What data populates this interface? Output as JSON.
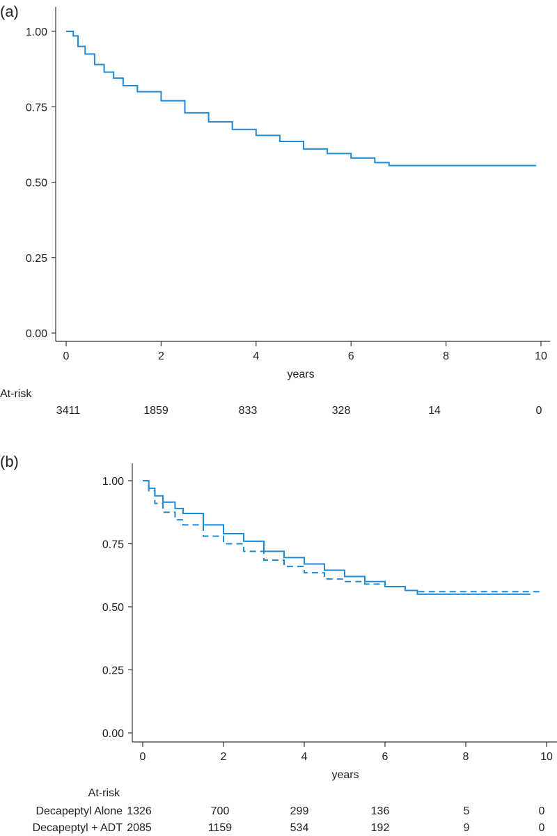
{
  "chart_data": [
    {
      "type": "line",
      "panel_label": "(a)",
      "xlabel": "years",
      "ylabel": "",
      "xlim": [
        0,
        10
      ],
      "ylim": [
        0,
        1
      ],
      "xticks": [
        "0",
        "2",
        "4",
        "6",
        "8",
        "10"
      ],
      "yticks": [
        "0.00",
        "0.25",
        "0.50",
        "0.75",
        "1.00"
      ],
      "color": "#1a8cd8",
      "series": [
        {
          "style": "solid",
          "x": [
            0,
            0.1,
            0.15,
            0.25,
            0.4,
            0.6,
            0.8,
            1.0,
            1.2,
            1.5,
            2.0,
            2.5,
            3.0,
            3.5,
            4.0,
            4.5,
            5.0,
            5.5,
            6.0,
            6.5,
            6.8,
            9.9
          ],
          "y": [
            1.0,
            1.0,
            0.985,
            0.95,
            0.925,
            0.89,
            0.865,
            0.845,
            0.82,
            0.8,
            0.77,
            0.73,
            0.7,
            0.675,
            0.655,
            0.635,
            0.61,
            0.595,
            0.58,
            0.565,
            0.555,
            0.555
          ]
        }
      ],
      "at_risk": {
        "title": "At-risk",
        "rows": [
          {
            "label": "",
            "values": [
              "3411",
              "1859",
              "833",
              "328",
              "14",
              "0"
            ]
          }
        ]
      }
    },
    {
      "type": "line",
      "panel_label": "(b)",
      "xlabel": "years",
      "ylabel": "",
      "xlim": [
        0,
        10
      ],
      "ylim": [
        0,
        1
      ],
      "xticks": [
        "0",
        "2",
        "4",
        "6",
        "8",
        "10"
      ],
      "yticks": [
        "0.00",
        "0.25",
        "0.50",
        "0.75",
        "1.00"
      ],
      "color": "#1a8cd8",
      "series": [
        {
          "style": "solid",
          "x": [
            0,
            0.1,
            0.15,
            0.3,
            0.5,
            0.8,
            1.0,
            1.5,
            2.0,
            2.5,
            3.0,
            3.5,
            4.0,
            4.5,
            5.0,
            5.5,
            6.0,
            6.5,
            6.8,
            9.6
          ],
          "y": [
            1.0,
            1.0,
            0.97,
            0.94,
            0.915,
            0.89,
            0.87,
            0.825,
            0.79,
            0.76,
            0.72,
            0.695,
            0.67,
            0.645,
            0.62,
            0.6,
            0.58,
            0.565,
            0.55,
            0.55
          ]
        },
        {
          "style": "dashed",
          "x": [
            0,
            0.1,
            0.15,
            0.3,
            0.5,
            0.8,
            1.0,
            1.5,
            2.0,
            2.5,
            3.0,
            3.5,
            4.0,
            4.5,
            5.0,
            5.5,
            6.0,
            6.5,
            6.8,
            9.9
          ],
          "y": [
            1.0,
            1.0,
            0.96,
            0.91,
            0.875,
            0.845,
            0.825,
            0.78,
            0.75,
            0.72,
            0.685,
            0.66,
            0.635,
            0.61,
            0.6,
            0.59,
            0.58,
            0.565,
            0.56,
            0.56
          ]
        }
      ],
      "at_risk": {
        "title": "At-risk",
        "rows": [
          {
            "label": "Decapeptyl Alone",
            "values": [
              "1326",
              "700",
              "299",
              "136",
              "5",
              "0"
            ]
          },
          {
            "label": "Decapeptyl + ADT",
            "values": [
              "2085",
              "1159",
              "534",
              "192",
              "9",
              "0"
            ]
          }
        ]
      }
    }
  ]
}
